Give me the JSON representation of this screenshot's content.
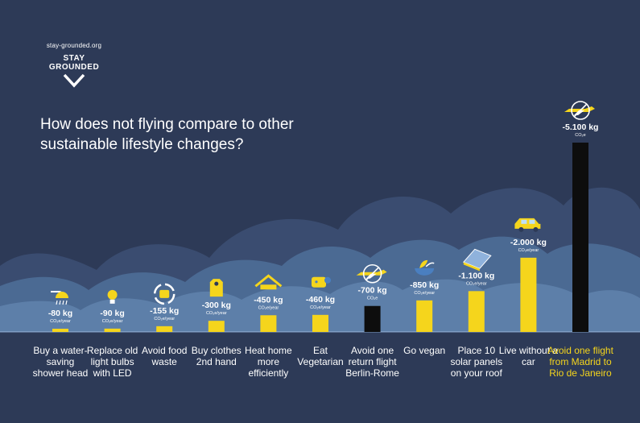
{
  "brand": {
    "url": "stay-grounded.org",
    "name_top": "STAY",
    "name_bottom": "GROUNDED"
  },
  "headline": "How does not flying compare to other sustainable lifestyle changes?",
  "colors": {
    "background": "#2d3a57",
    "bar": "#f5d51c",
    "flight_bar": "#0d0d0d",
    "text": "#ffffff",
    "highlight_text": "#f5d51c"
  },
  "chart_data": {
    "type": "bar",
    "title": "How does not flying compare to other sustainable lifestyle changes?",
    "xlabel": "",
    "ylabel": "",
    "ylim": [
      0,
      5100
    ],
    "grid": false,
    "categories": [
      "Buy a water- saving shower head",
      "Replace old light bulbs with LED",
      "Avoid food waste",
      "Buy clothes 2nd hand",
      "Heat home more efficiently",
      "Eat Vegetarian",
      "Avoid one return flight Berlin-Rome",
      "Go vegan",
      "Place 10 solar panels on your roof",
      "Live without a car",
      "Avoid one flight from Madrid to Rio de Janeiro"
    ],
    "values": [
      80,
      90,
      155,
      300,
      450,
      460,
      700,
      850,
      1100,
      2000,
      5100
    ],
    "value_labels": [
      "-80 kg",
      "-90 kg",
      "-155 kg",
      "-300 kg",
      "-450 kg",
      "-460 kg",
      "-700 kg",
      "-850 kg",
      "-1.100 kg",
      "-2.000 kg",
      "-5.100 kg"
    ],
    "unit_labels": [
      "CO₂e/year",
      "CO₂e/year",
      "CO₂e/year",
      "CO₂e/year",
      "CO₂e/year",
      "CO₂e/year",
      "CO₂e",
      "CO₂e/year",
      "CO₂e/year",
      "CO₂e/year",
      "CO₂e"
    ],
    "icons": [
      "shower-icon",
      "light-bulb-icon",
      "recycle-icon",
      "clothes-icon",
      "house-icon",
      "vegetables-icon",
      "crossed-plane-icon",
      "vegan-bowl-icon",
      "solar-panel-icon",
      "car-icon",
      "crossed-plane-icon"
    ],
    "is_flight": [
      false,
      false,
      false,
      false,
      false,
      false,
      true,
      false,
      false,
      false,
      true
    ],
    "highlight": [
      false,
      false,
      false,
      false,
      false,
      false,
      false,
      false,
      false,
      false,
      true
    ]
  }
}
